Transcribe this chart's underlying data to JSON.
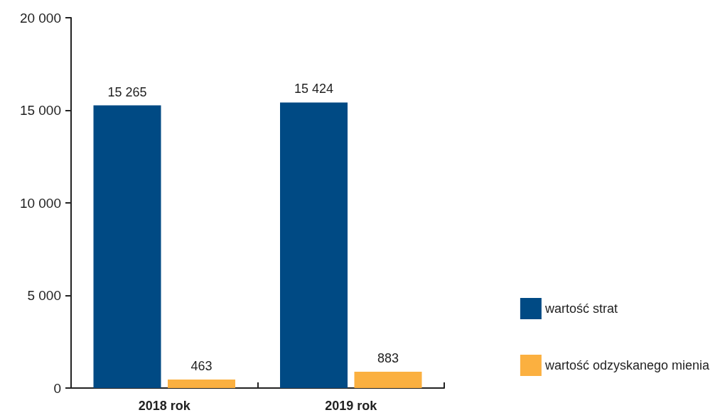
{
  "chart_data": {
    "type": "bar",
    "categories": [
      "2018 rok",
      "2019 rok"
    ],
    "series": [
      {
        "name": "wartość strat",
        "color": "#004a84",
        "values": [
          15265,
          15424
        ],
        "value_labels": [
          "15 265",
          "15 424"
        ]
      },
      {
        "name": "wartość odzyskanego mienia",
        "color": "#fbb040",
        "values": [
          463,
          883
        ],
        "value_labels": [
          "463",
          "883"
        ]
      }
    ],
    "ylim": [
      0,
      20000
    ],
    "yticks": [
      {
        "value": 0,
        "label": "0"
      },
      {
        "value": 5000,
        "label": "5 000"
      },
      {
        "value": 10000,
        "label": "10 000"
      },
      {
        "value": 15000,
        "label": "15 000"
      },
      {
        "value": 20000,
        "label": "20 000"
      }
    ],
    "grid": false,
    "legend": "right"
  }
}
